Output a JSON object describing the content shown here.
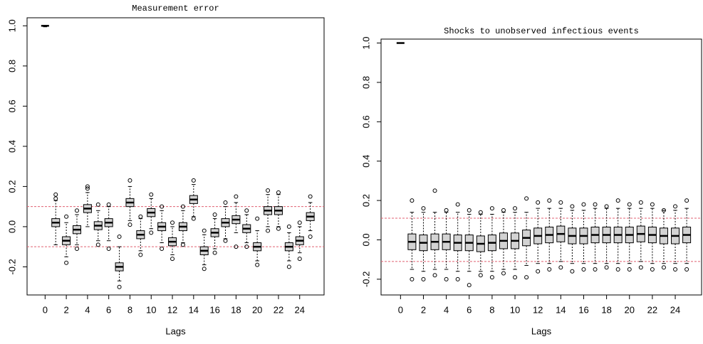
{
  "chart_data": [
    {
      "type": "boxplot",
      "title": "Measurement error",
      "xlabel": "Lags",
      "x": [
        0,
        1,
        2,
        3,
        4,
        5,
        6,
        7,
        8,
        9,
        10,
        11,
        12,
        13,
        14,
        15,
        16,
        17,
        18,
        19,
        20,
        21,
        22,
        23,
        24,
        25
      ],
      "whisker_low": [
        0.995,
        -0.09,
        -0.15,
        -0.09,
        0.0,
        -0.07,
        -0.07,
        -0.27,
        0.03,
        -0.12,
        -0.01,
        -0.08,
        -0.14,
        -0.08,
        0.05,
        -0.19,
        -0.11,
        -0.06,
        -0.03,
        -0.08,
        -0.17,
        0.0,
        0.0,
        -0.17,
        -0.13,
        -0.02
      ],
      "q1": [
        1.0,
        0.0,
        -0.09,
        -0.035,
        0.07,
        -0.015,
        0.0,
        -0.22,
        0.1,
        -0.06,
        0.05,
        -0.02,
        -0.095,
        -0.02,
        0.115,
        -0.14,
        -0.05,
        0.0,
        0.015,
        -0.03,
        -0.12,
        0.06,
        0.06,
        -0.12,
        -0.09,
        0.03
      ],
      "median": [
        1.0,
        0.02,
        -0.07,
        -0.015,
        0.09,
        0.005,
        0.02,
        -0.2,
        0.12,
        -0.04,
        0.07,
        0.0,
        -0.075,
        0.0,
        0.135,
        -0.12,
        -0.03,
        0.02,
        0.035,
        -0.01,
        -0.1,
        0.08,
        0.08,
        -0.1,
        -0.07,
        0.05
      ],
      "q3": [
        1.0,
        0.04,
        -0.05,
        0.005,
        0.11,
        0.025,
        0.04,
        -0.18,
        0.14,
        -0.02,
        0.09,
        0.02,
        -0.055,
        0.02,
        0.155,
        -0.1,
        -0.01,
        0.04,
        0.055,
        0.01,
        -0.08,
        0.1,
        0.1,
        -0.08,
        -0.05,
        0.07
      ],
      "whisker_high": [
        1.0,
        0.13,
        0.02,
        0.06,
        0.17,
        0.08,
        0.1,
        -0.1,
        0.2,
        0.04,
        0.14,
        0.08,
        0.0,
        0.08,
        0.21,
        -0.04,
        0.04,
        0.1,
        0.12,
        0.06,
        -0.02,
        0.16,
        0.16,
        -0.03,
        0.0,
        0.12
      ],
      "outliers": [
        [],
        [
          0.16,
          0.14
        ],
        [
          -0.18,
          0.05
        ],
        [
          -0.11,
          0.08
        ],
        [
          0.2,
          0.19
        ],
        [
          0.11,
          -0.09
        ],
        [
          0.11,
          -0.11
        ],
        [
          -0.3,
          -0.05
        ],
        [
          0.23,
          0.01
        ],
        [
          -0.14,
          0.05
        ],
        [
          0.16,
          -0.03
        ],
        [
          -0.11,
          0.1
        ],
        [
          -0.16,
          0.02
        ],
        [
          0.1,
          -0.09
        ],
        [
          0.23,
          0.04
        ],
        [
          -0.21,
          -0.02
        ],
        [
          0.06,
          -0.13
        ],
        [
          0.12,
          -0.07
        ],
        [
          0.15,
          -0.1
        ],
        [
          0.08,
          -0.1
        ],
        [
          -0.19,
          0.04
        ],
        [
          0.18,
          -0.02
        ],
        [
          0.17,
          -0.01
        ],
        [
          -0.2,
          0.0
        ],
        [
          -0.16,
          0.02
        ],
        [
          0.15,
          -0.05
        ]
      ],
      "box_color": "#d3d3d3",
      "hlines": [
        0.1,
        -0.1
      ],
      "hline_color": "#e06070",
      "xlim": [
        -1.7,
        26.3
      ],
      "ylim": [
        -0.34,
        1.04
      ],
      "xticks": [
        0,
        2,
        4,
        6,
        8,
        10,
        12,
        14,
        16,
        18,
        20,
        22,
        24
      ],
      "yticks": [
        -0.2,
        {
          "value": 0,
          "label": "0.0"
        },
        0.2,
        0.4,
        0.6,
        0.8,
        {
          "value": 1,
          "label": "1.0"
        }
      ]
    },
    {
      "type": "boxplot",
      "title": "Shocks to unobserved infectious events",
      "xlabel": "Lags",
      "x": [
        0,
        1,
        2,
        3,
        4,
        5,
        6,
        7,
        8,
        9,
        10,
        11,
        12,
        13,
        14,
        15,
        16,
        17,
        18,
        19,
        20,
        21,
        22,
        23,
        24,
        25
      ],
      "whisker_low": [
        1.0,
        -0.15,
        -0.16,
        -0.15,
        -0.15,
        -0.16,
        -0.16,
        -0.16,
        -0.16,
        -0.15,
        -0.15,
        -0.13,
        -0.12,
        -0.12,
        -0.11,
        -0.12,
        -0.12,
        -0.12,
        -0.12,
        -0.12,
        -0.12,
        -0.11,
        -0.12,
        -0.12,
        -0.12,
        -0.12
      ],
      "q1": [
        1.0,
        -0.05,
        -0.055,
        -0.05,
        -0.05,
        -0.055,
        -0.055,
        -0.06,
        -0.055,
        -0.045,
        -0.045,
        -0.03,
        -0.02,
        -0.015,
        -0.01,
        -0.02,
        -0.02,
        -0.015,
        -0.015,
        -0.015,
        -0.015,
        -0.01,
        -0.015,
        -0.02,
        -0.02,
        -0.015
      ],
      "median": [
        1.0,
        -0.01,
        -0.015,
        -0.01,
        -0.01,
        -0.015,
        -0.015,
        -0.02,
        -0.015,
        -0.005,
        -0.005,
        0.01,
        0.02,
        0.025,
        0.03,
        0.02,
        0.02,
        0.025,
        0.025,
        0.025,
        0.025,
        0.03,
        0.025,
        0.02,
        0.02,
        0.025
      ],
      "q3": [
        1.0,
        0.03,
        0.025,
        0.03,
        0.03,
        0.025,
        0.025,
        0.02,
        0.025,
        0.035,
        0.035,
        0.05,
        0.06,
        0.065,
        0.07,
        0.06,
        0.06,
        0.065,
        0.065,
        0.065,
        0.065,
        0.07,
        0.065,
        0.06,
        0.06,
        0.065
      ],
      "whisker_high": [
        1.0,
        0.14,
        0.14,
        0.14,
        0.14,
        0.14,
        0.13,
        0.13,
        0.13,
        0.14,
        0.14,
        0.14,
        0.16,
        0.16,
        0.16,
        0.15,
        0.15,
        0.16,
        0.16,
        0.16,
        0.16,
        0.16,
        0.16,
        0.15,
        0.15,
        0.16
      ],
      "outliers": [
        [],
        [
          0.2,
          -0.2
        ],
        [
          0.16,
          -0.2
        ],
        [
          0.25,
          -0.18
        ],
        [
          0.15,
          -0.2
        ],
        [
          0.18,
          -0.2
        ],
        [
          0.15,
          -0.23
        ],
        [
          0.14,
          -0.18
        ],
        [
          0.16,
          -0.19
        ],
        [
          0.15,
          -0.17
        ],
        [
          0.16,
          -0.19
        ],
        [
          0.21,
          -0.19
        ],
        [
          0.19,
          -0.16
        ],
        [
          0.2,
          -0.15
        ],
        [
          0.19,
          -0.14
        ],
        [
          0.17,
          -0.16
        ],
        [
          0.18,
          -0.15
        ],
        [
          0.18,
          -0.15
        ],
        [
          0.17,
          -0.14
        ],
        [
          0.2,
          -0.15
        ],
        [
          0.18,
          -0.15
        ],
        [
          0.19,
          -0.14
        ],
        [
          0.18,
          -0.15
        ],
        [
          0.15,
          -0.14
        ],
        [
          0.17,
          -0.15
        ],
        [
          0.2,
          -0.15
        ]
      ],
      "box_color": "#d3d3d3",
      "hlines": [
        0.11,
        -0.11
      ],
      "hline_color": "#e06070",
      "xlim": [
        -1.7,
        26.3
      ],
      "ylim": [
        -0.28,
        1.02
      ],
      "xticks": [
        0,
        2,
        4,
        6,
        8,
        10,
        12,
        14,
        16,
        18,
        20,
        22,
        24
      ],
      "yticks": [
        -0.2,
        {
          "value": 0,
          "label": "0.0"
        },
        0.2,
        0.4,
        0.6,
        0.8,
        {
          "value": 1,
          "label": "1.0"
        }
      ]
    }
  ]
}
